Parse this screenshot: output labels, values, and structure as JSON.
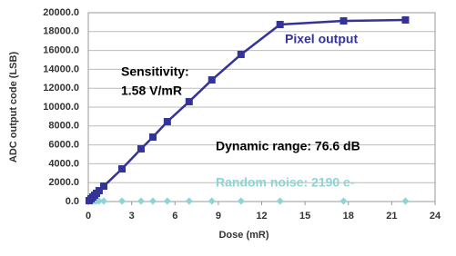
{
  "chart_data": {
    "type": "line",
    "xlabel": "Dose (mR)",
    "ylabel": "ADC output code (LSB)",
    "x": [
      0.06,
      0.19,
      0.31,
      0.44,
      0.57,
      0.75,
      1.07,
      2.33,
      3.65,
      4.47,
      5.47,
      6.98,
      8.55,
      10.57,
      13.27,
      17.67,
      21.95
    ],
    "series": [
      {
        "name": "Pixel output",
        "color": "#333399",
        "marker": "square",
        "values": [
          100,
          290,
          480,
          670,
          870,
          1150,
          1630,
          3460,
          5580,
          6830,
          8460,
          10580,
          12880,
          15580,
          18750,
          19130,
          19230
        ]
      },
      {
        "name": "Random noise: 2190 e-",
        "color": "#8fd3d3",
        "marker": "diamond",
        "values": [
          50,
          50,
          50,
          50,
          50,
          50,
          50,
          50,
          50,
          50,
          50,
          50,
          50,
          50,
          50,
          50,
          50
        ]
      }
    ],
    "annotations": [
      "Sensitivity:",
      "1.58 V/mR",
      "Dynamic range: 76.6 dB"
    ],
    "xlim": [
      0,
      24
    ],
    "xticks": [
      0,
      3,
      6,
      9,
      12,
      15,
      18,
      21,
      24
    ],
    "ylim": [
      0,
      20000
    ],
    "yticks": [
      {
        "value": 0,
        "label": "0.0"
      },
      {
        "value": 2000,
        "label": "2000.0"
      },
      {
        "value": 4000,
        "label": "4000.0"
      },
      {
        "value": 6000,
        "label": "6000.0"
      },
      {
        "value": 8000,
        "label": "8000.0"
      },
      {
        "value": 10000,
        "label": "10000.0"
      },
      {
        "value": 12000,
        "label": "12000.0"
      },
      {
        "value": 14000,
        "label": "14000.0"
      },
      {
        "value": 16000,
        "label": "16000.0"
      },
      {
        "value": 18000,
        "label": "18000.0"
      },
      {
        "value": 20000,
        "label": "20000.0"
      }
    ],
    "grid": true
  }
}
